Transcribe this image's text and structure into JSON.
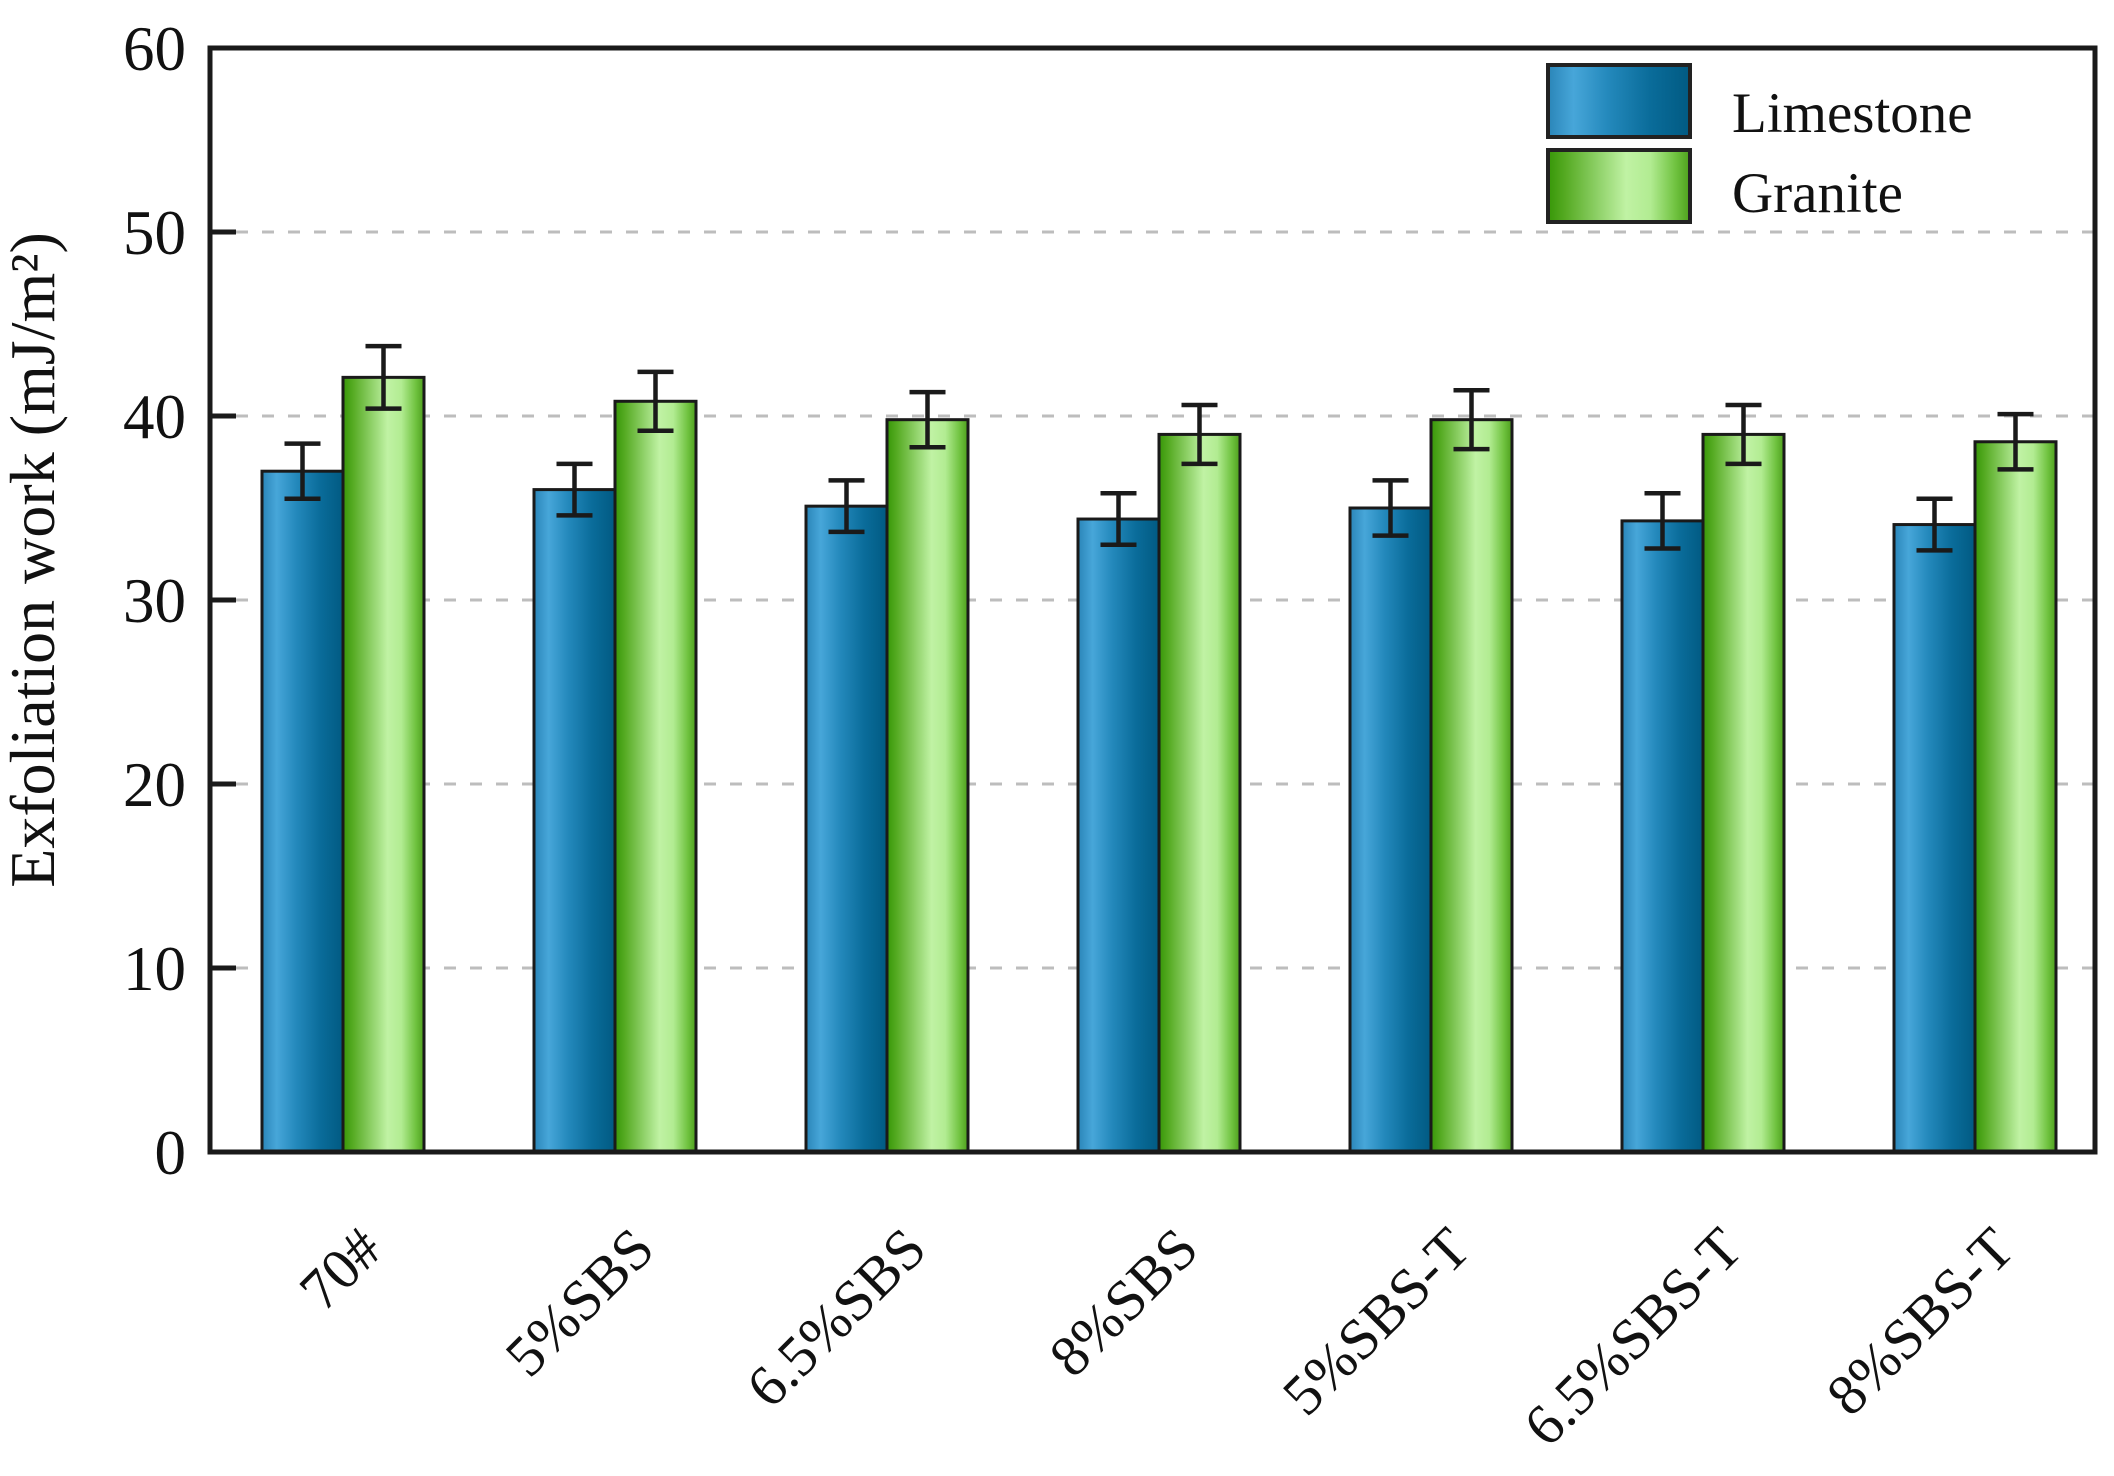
{
  "figure": {
    "background": "#ffffff",
    "axis_color": "#1a1a1a",
    "gridline_color": "#bdbdbd",
    "tick_label_color": "#111111",
    "error_bar_color": "#1a1a1a"
  },
  "chart_data": {
    "type": "bar",
    "title": "",
    "xlabel": "",
    "ylabel": "Exfoliation work (mJ/m²)",
    "ylim": [
      0,
      60
    ],
    "yticks": [
      0,
      10,
      20,
      30,
      40,
      50,
      60
    ],
    "grid": "horizontal dashed at major ticks",
    "legend_position": "top-right inside plot, no frame",
    "categories": [
      "70#",
      "5%SBS",
      "6.5%SBS",
      "8%SBS",
      "5%SBS-T",
      "6.5%SBS-T",
      "8%SBS-T"
    ],
    "series": [
      {
        "name": "Limestone",
        "color": "#2b87ba",
        "gradient": [
          {
            "o": 0,
            "c": "#2a85b8"
          },
          {
            "o": 0.18,
            "c": "#47a6d9"
          },
          {
            "o": 0.42,
            "c": "#2489bc"
          },
          {
            "o": 0.72,
            "c": "#0a6c9a"
          },
          {
            "o": 1,
            "c": "#015a82"
          }
        ],
        "values": [
          37.0,
          36.0,
          35.1,
          34.4,
          35.0,
          34.3,
          34.1
        ],
        "errors": [
          1.5,
          1.4,
          1.4,
          1.4,
          1.5,
          1.5,
          1.4
        ]
      },
      {
        "name": "Granite",
        "color": "#6cc13d",
        "gradient": [
          {
            "o": 0,
            "c": "#379708"
          },
          {
            "o": 0.12,
            "c": "#55aa22"
          },
          {
            "o": 0.55,
            "c": "#c0f2a4"
          },
          {
            "o": 0.72,
            "c": "#b2ec92"
          },
          {
            "o": 0.9,
            "c": "#6fc23f"
          },
          {
            "o": 1,
            "c": "#4d9f1c"
          }
        ],
        "values": [
          42.1,
          40.8,
          39.8,
          39.0,
          39.8,
          39.0,
          38.6
        ],
        "errors": [
          1.7,
          1.6,
          1.5,
          1.6,
          1.6,
          1.6,
          1.5
        ]
      }
    ]
  }
}
